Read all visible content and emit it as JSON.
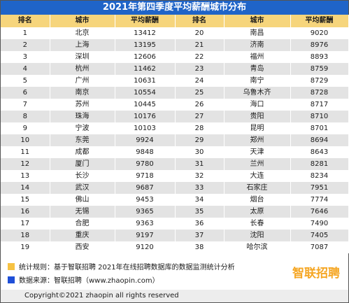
{
  "title": "2021年第四季度平均薪酬城市分布",
  "headers": [
    "排名",
    "城市",
    "平均薪酬",
    "排名",
    "城市",
    "平均薪酬"
  ],
  "rows": [
    {
      "left": {
        "rank": "1",
        "city": "北京",
        "salary": "13412"
      },
      "right": {
        "rank": "20",
        "city": "南昌",
        "salary": "9020"
      }
    },
    {
      "left": {
        "rank": "2",
        "city": "上海",
        "salary": "13195"
      },
      "right": {
        "rank": "21",
        "city": "济南",
        "salary": "8976"
      }
    },
    {
      "left": {
        "rank": "3",
        "city": "深圳",
        "salary": "12606"
      },
      "right": {
        "rank": "22",
        "city": "福州",
        "salary": "8893"
      }
    },
    {
      "left": {
        "rank": "4",
        "city": "杭州",
        "salary": "11462"
      },
      "right": {
        "rank": "23",
        "city": "青岛",
        "salary": "8759"
      }
    },
    {
      "left": {
        "rank": "5",
        "city": "广州",
        "salary": "10631"
      },
      "right": {
        "rank": "24",
        "city": "南宁",
        "salary": "8729"
      }
    },
    {
      "left": {
        "rank": "6",
        "city": "南京",
        "salary": "10554"
      },
      "right": {
        "rank": "25",
        "city": "乌鲁木齐",
        "salary": "8728"
      }
    },
    {
      "left": {
        "rank": "7",
        "city": "苏州",
        "salary": "10445"
      },
      "right": {
        "rank": "26",
        "city": "海口",
        "salary": "8717"
      }
    },
    {
      "left": {
        "rank": "8",
        "city": "珠海",
        "salary": "10176"
      },
      "right": {
        "rank": "27",
        "city": "贵阳",
        "salary": "8710"
      }
    },
    {
      "left": {
        "rank": "9",
        "city": "宁波",
        "salary": "10103"
      },
      "right": {
        "rank": "28",
        "city": "昆明",
        "salary": "8701"
      }
    },
    {
      "left": {
        "rank": "10",
        "city": "东莞",
        "salary": "9924"
      },
      "right": {
        "rank": "29",
        "city": "郑州",
        "salary": "8694"
      }
    },
    {
      "left": {
        "rank": "11",
        "city": "成都",
        "salary": "9848"
      },
      "right": {
        "rank": "30",
        "city": "天津",
        "salary": "8643"
      }
    },
    {
      "left": {
        "rank": "12",
        "city": "厦门",
        "salary": "9780"
      },
      "right": {
        "rank": "31",
        "city": "兰州",
        "salary": "8281"
      }
    },
    {
      "left": {
        "rank": "13",
        "city": "长沙",
        "salary": "9718"
      },
      "right": {
        "rank": "32",
        "city": "大连",
        "salary": "8234"
      }
    },
    {
      "left": {
        "rank": "14",
        "city": "武汉",
        "salary": "9687"
      },
      "right": {
        "rank": "33",
        "city": "石家庄",
        "salary": "7951"
      }
    },
    {
      "left": {
        "rank": "15",
        "city": "佛山",
        "salary": "9453"
      },
      "right": {
        "rank": "34",
        "city": "烟台",
        "salary": "7774"
      }
    },
    {
      "left": {
        "rank": "16",
        "city": "无锡",
        "salary": "9365"
      },
      "right": {
        "rank": "35",
        "city": "太原",
        "salary": "7646"
      }
    },
    {
      "left": {
        "rank": "17",
        "city": "合肥",
        "salary": "9363"
      },
      "right": {
        "rank": "36",
        "city": "长春",
        "salary": "7490"
      }
    },
    {
      "left": {
        "rank": "18",
        "city": "重庆",
        "salary": "9197"
      },
      "right": {
        "rank": "37",
        "city": "沈阳",
        "salary": "7405"
      }
    },
    {
      "left": {
        "rank": "19",
        "city": "西安",
        "salary": "9120"
      },
      "right": {
        "rank": "38",
        "city": "哈尔滨",
        "salary": "7087"
      }
    }
  ],
  "legend": {
    "rule": "统计规则：基于智联招聘 2021年在线招聘数据库的数据监测统计分析",
    "rule_color": "#f6c243",
    "source": "数据来源：智联招聘（www.zhaopin.com）",
    "source_color": "#1f4fd8"
  },
  "logo": {
    "text": "智联招聘",
    "icon": "zhaopin-logo-icon"
  },
  "copyright": "Copyright©2021 zhaopin all rights reserved",
  "colors": {
    "title_bar": "#1f64c8",
    "header_row": "#f6d57c",
    "row_stripe": "#e3e3e3"
  }
}
